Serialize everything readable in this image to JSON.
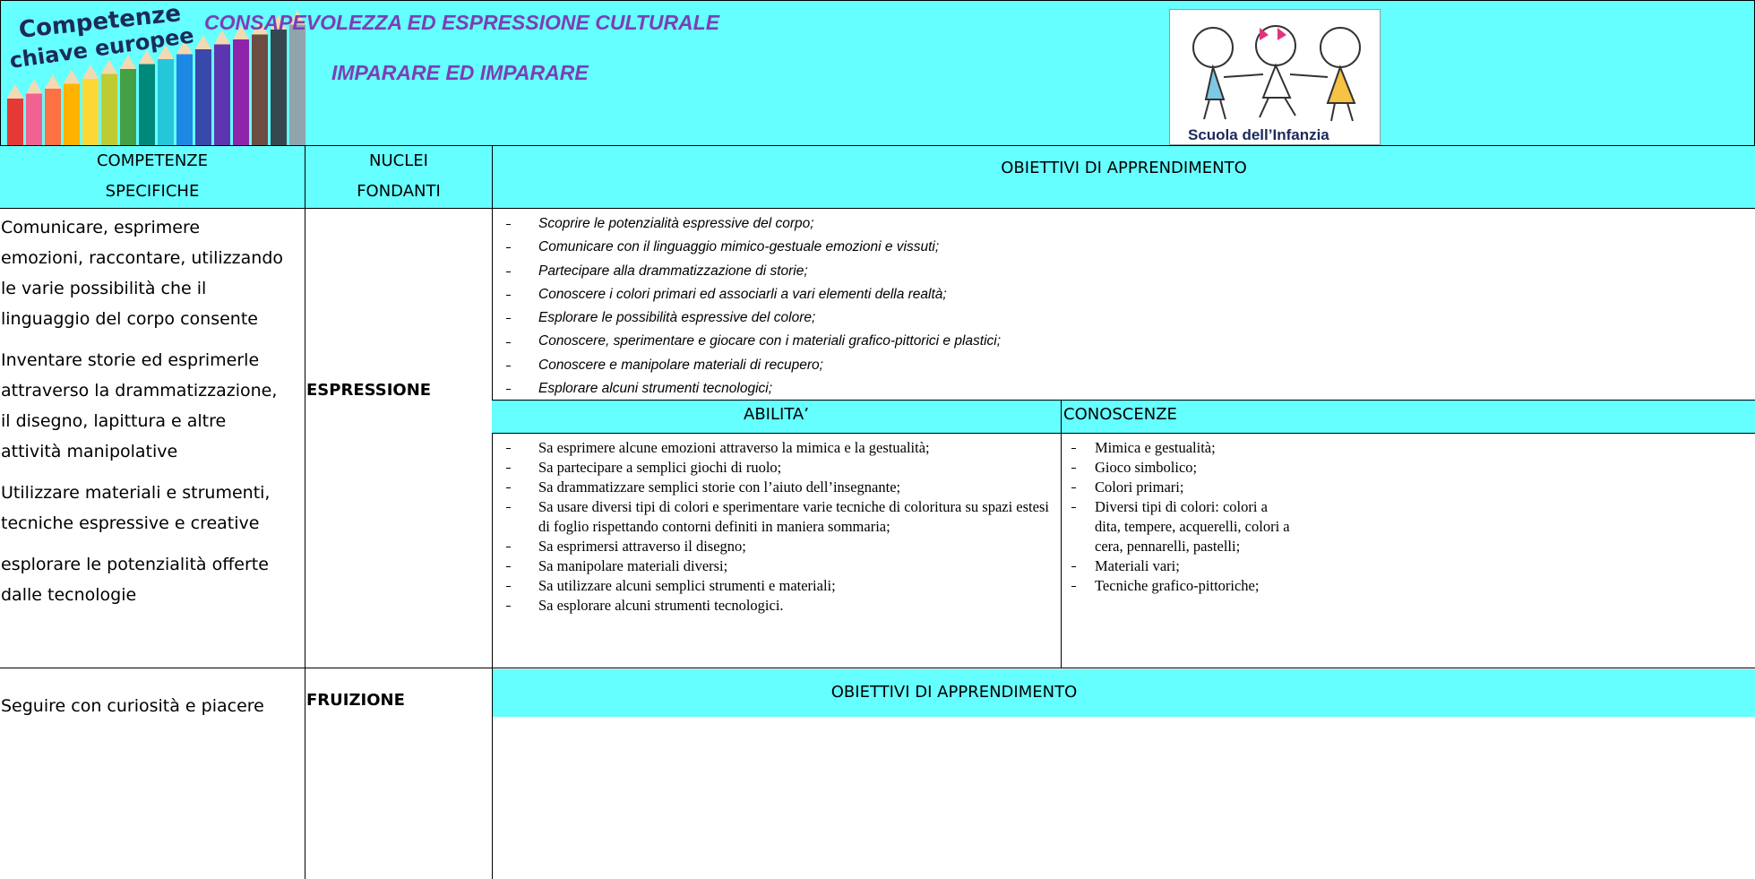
{
  "header": {
    "logo_text": [
      "Competenze",
      "chiave europee"
    ],
    "title": "CONSAPEVOLEZZA ED ESPRESSIONE CULTURALE",
    "subtitle": "IMPARARE ED IMPARARE",
    "logo_caption": "Scuola dell’Infanzia"
  },
  "table": {
    "headers": {
      "competenze": [
        "COMPETENZE",
        "SPECIFICHE"
      ],
      "nuclei": [
        "NUCLEI",
        "FONDANTI"
      ],
      "obiettivi": "OBIETTIVI DI APPRENDIMENTO"
    },
    "rows": [
      {
        "competenze": [
          "Comunicare, esprimere emozioni, raccontare, utilizzando le varie possibilità che il linguaggio del corpo consente",
          "Inventare storie ed esprimerle attraverso  la drammatizzazione, il disegno, lapittura e altre attività manipolative",
          "Utilizzare materiali e strumenti, tecniche espressive e creative",
          "esplorare le potenzialità offerte dalle tecnologie"
        ],
        "nucleo": "ESPRESSIONE",
        "obiettivi": [
          "Scoprire le potenzialità espressive del corpo;",
          "Comunicare con il linguaggio mimico-gestuale emozioni e vissuti;",
          "Partecipare alla drammatizzazione di storie;",
          "Conoscere i colori primari ed associarli a vari elementi della realtà;",
          "Esplorare le possibilità espressive del colore;",
          "Conoscere, sperimentare e giocare con i materiali grafico-pittorici e plastici;",
          "Conoscere e manipolare materiali di recupero;",
          "Esplorare alcuni strumenti tecnologici;"
        ],
        "abilita_header": "ABILITA’",
        "conoscenze_header": "CONOSCENZE",
        "abilita": [
          "Sa esprimere alcune emozioni attraverso la mimica e la gestualità;",
          "Sa partecipare a semplici giochi di ruolo;",
          "Sa drammatizzare semplici storie con l’aiuto dell’insegnante;",
          "Sa usare diversi tipi di colori e sperimentare varie tecniche di coloritura su spazi estesi di foglio rispettando contorni definiti in maniera sommaria;",
          "Sa esprimersi attraverso il disegno;",
          "Sa manipolare materiali diversi;",
          "Sa utilizzare alcuni semplici strumenti e materiali;",
          "Sa esplorare alcuni strumenti tecnologici."
        ],
        "conoscenze": [
          "Mimica e gestualità;",
          "Gioco simbolico;",
          "Colori primari;",
          "Diversi tipi di colori: colori a dita, tempere, acquerelli, colori a cera, pennarelli, pastelli;",
          "Materiali vari;",
          "Tecniche grafico-pittoriche;"
        ]
      },
      {
        "competenze": [
          "Seguire con curiosità e piacere"
        ],
        "nucleo": "FRUIZIONE",
        "obiettivi_header": "OBIETTIVI DI APPRENDIMENTO"
      }
    ]
  }
}
